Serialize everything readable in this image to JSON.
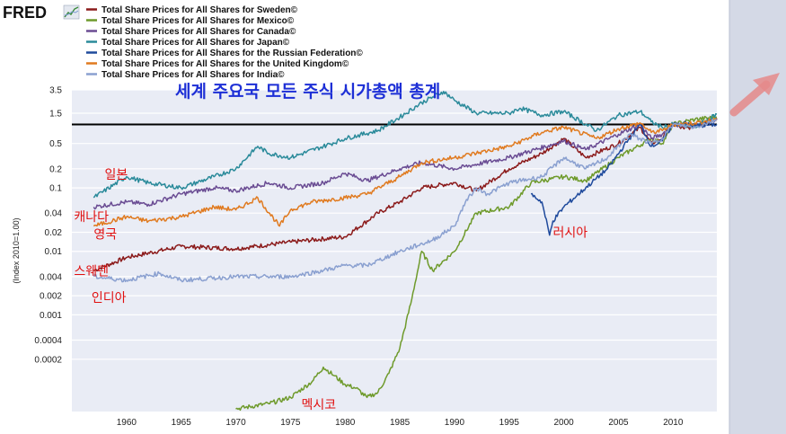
{
  "logo": "FRED",
  "colors": {
    "background": "#ffffff",
    "plot_bg": "#e9ecf5",
    "grid": "#ffffff",
    "sidebar": "#d4d9e6",
    "title": "#1d2fd6",
    "annotation": "#e01010",
    "arrow": "#e58a8a",
    "reference_line": "#000000"
  },
  "chart_data": {
    "type": "line",
    "title": "세계 주요국 모든 주식 시가총액 총계",
    "ylabel": "(Index 2010=1.00)",
    "yscale": "log",
    "xlim": [
      1955,
      2014
    ],
    "ylim": [
      3e-05,
      3.5
    ],
    "y_ticks": [
      {
        "value": 3.5,
        "label": "3.5"
      },
      {
        "value": 1.5,
        "label": "1.5"
      },
      {
        "value": 0.5,
        "label": "0.5"
      },
      {
        "value": 0.2,
        "label": "0.2"
      },
      {
        "value": 0.1,
        "label": "0.1"
      },
      {
        "value": 0.04,
        "label": "0.04"
      },
      {
        "value": 0.02,
        "label": "0.02"
      },
      {
        "value": 0.01,
        "label": "0.01"
      },
      {
        "value": 0.004,
        "label": "0.004"
      },
      {
        "value": 0.002,
        "label": "0.002"
      },
      {
        "value": 0.001,
        "label": "0.001"
      },
      {
        "value": 0.0004,
        "label": "0.0004"
      },
      {
        "value": 0.0002,
        "label": "0.0002"
      }
    ],
    "x_ticks": [
      "1960",
      "1965",
      "1970",
      "1975",
      "1980",
      "1985",
      "1990",
      "1995",
      "2000",
      "2005",
      "2010"
    ],
    "reference_line": 1.0,
    "grid": true,
    "legend_position": "top-left",
    "series": [
      {
        "name": "Total Share Prices for All Shares for Sweden©",
        "color": "#8b1a1a",
        "x": [
          1957,
          1960,
          1965,
          1970,
          1975,
          1980,
          1983,
          1985,
          1987,
          1990,
          1992,
          1995,
          1998,
          2000,
          2002,
          2005,
          2007,
          2008,
          2009,
          2010,
          2011,
          2012,
          2013,
          2014
        ],
        "y": [
          0.005,
          0.008,
          0.012,
          0.011,
          0.014,
          0.017,
          0.04,
          0.06,
          0.1,
          0.12,
          0.09,
          0.2,
          0.35,
          0.6,
          0.3,
          0.5,
          0.9,
          0.5,
          0.6,
          1.0,
          0.85,
          0.95,
          1.1,
          1.25
        ]
      },
      {
        "name": "Total Share Prices for All Shares for Mexico©",
        "color": "#6e9a2b",
        "x": [
          1970,
          1973,
          1975,
          1977,
          1978,
          1979,
          1980,
          1981,
          1982,
          1983,
          1984,
          1985,
          1986,
          1987,
          1988,
          1990,
          1992,
          1995,
          1997,
          2000,
          2002,
          2005,
          2008,
          2009,
          2010,
          2012,
          2014
        ],
        "y": [
          3.3e-05,
          4e-05,
          5e-05,
          9e-05,
          0.00015,
          0.00011,
          8e-05,
          7e-05,
          5e-05,
          6e-05,
          0.00012,
          0.0003,
          0.0015,
          0.01,
          0.005,
          0.01,
          0.04,
          0.05,
          0.12,
          0.15,
          0.13,
          0.3,
          0.6,
          0.5,
          1.0,
          1.2,
          1.3
        ]
      },
      {
        "name": "Total Share Prices for All Shares for Canada©",
        "color": "#6a4c93",
        "x": [
          1957,
          1960,
          1962,
          1965,
          1968,
          1970,
          1973,
          1975,
          1978,
          1980,
          1982,
          1985,
          1987,
          1990,
          1995,
          2000,
          2002,
          2005,
          2007,
          2008,
          2009,
          2010,
          2012,
          2014
        ],
        "y": [
          0.05,
          0.06,
          0.055,
          0.08,
          0.1,
          0.09,
          0.12,
          0.1,
          0.12,
          0.17,
          0.13,
          0.2,
          0.25,
          0.2,
          0.3,
          0.55,
          0.4,
          0.7,
          1.0,
          0.6,
          0.7,
          1.0,
          0.95,
          1.2
        ]
      },
      {
        "name": "Total Share Prices for All Shares for Japan©",
        "color": "#2a8a9a",
        "x": [
          1957,
          1960,
          1962,
          1965,
          1968,
          1970,
          1972,
          1973,
          1975,
          1978,
          1980,
          1983,
          1985,
          1987,
          1989,
          1990,
          1992,
          1995,
          1996,
          1998,
          2000,
          2003,
          2005,
          2007,
          2008,
          2009,
          2010,
          2012,
          2014
        ],
        "y": [
          0.07,
          0.15,
          0.12,
          0.1,
          0.15,
          0.2,
          0.45,
          0.35,
          0.3,
          0.45,
          0.6,
          0.8,
          1.3,
          2.2,
          3.3,
          2.4,
          1.5,
          1.5,
          1.8,
          1.4,
          1.6,
          0.8,
          1.4,
          1.6,
          1.1,
          0.9,
          1.0,
          0.9,
          1.45
        ]
      },
      {
        "name": "Total Share Prices for All Shares for the Russian Federation©",
        "color": "#1f4a9c",
        "x": [
          1997,
          1998,
          1998.7,
          1999,
          2000,
          2002,
          2004,
          2006,
          2007,
          2008,
          2009,
          2010,
          2011,
          2012,
          2014
        ],
        "y": [
          0.08,
          0.06,
          0.018,
          0.03,
          0.05,
          0.1,
          0.2,
          0.6,
          1.0,
          0.45,
          0.55,
          1.0,
          1.05,
          0.95,
          1.0
        ]
      },
      {
        "name": "Total Share Prices for All Shares for the United Kingdom©",
        "color": "#e07a1f",
        "x": [
          1957,
          1960,
          1962,
          1965,
          1968,
          1970,
          1972,
          1974,
          1975,
          1977,
          1980,
          1982,
          1985,
          1987,
          1990,
          1995,
          1998,
          2000,
          2003,
          2005,
          2007,
          2008,
          2009,
          2010,
          2012,
          2014
        ],
        "y": [
          0.025,
          0.035,
          0.03,
          0.035,
          0.05,
          0.045,
          0.07,
          0.025,
          0.045,
          0.06,
          0.07,
          0.08,
          0.15,
          0.25,
          0.3,
          0.45,
          0.75,
          0.9,
          0.6,
          0.85,
          1.05,
          0.75,
          0.8,
          1.0,
          1.05,
          1.2
        ]
      },
      {
        "name": "Total Share Prices for All Shares for India©",
        "color": "#8aa0d0",
        "x": [
          1957,
          1960,
          1963,
          1965,
          1970,
          1975,
          1978,
          1980,
          1982,
          1985,
          1988,
          1990,
          1991,
          1992,
          1993,
          1995,
          1998,
          2000,
          2002,
          2004,
          2006,
          2008,
          2009,
          2010,
          2012,
          2014
        ],
        "y": [
          0.004,
          0.0035,
          0.0045,
          0.0035,
          0.004,
          0.004,
          0.005,
          0.006,
          0.006,
          0.01,
          0.015,
          0.025,
          0.06,
          0.1,
          0.08,
          0.12,
          0.15,
          0.3,
          0.2,
          0.3,
          0.7,
          0.5,
          0.6,
          1.0,
          0.9,
          1.2
        ]
      }
    ]
  },
  "annotations": [
    {
      "text": "일본",
      "x": 1958,
      "y": 0.14
    },
    {
      "text": "캐나다",
      "x": 1955.2,
      "y": 0.03
    },
    {
      "text": "영국",
      "x": 1957,
      "y": 0.016
    },
    {
      "text": "스웨덴",
      "x": 1955.2,
      "y": 0.0042
    },
    {
      "text": "인디아",
      "x": 1956.8,
      "y": 0.0016
    },
    {
      "text": "러시아",
      "x": 1999,
      "y": 0.017
    },
    {
      "text": "멕시코",
      "x": 1976,
      "y": 3.3e-05
    }
  ]
}
